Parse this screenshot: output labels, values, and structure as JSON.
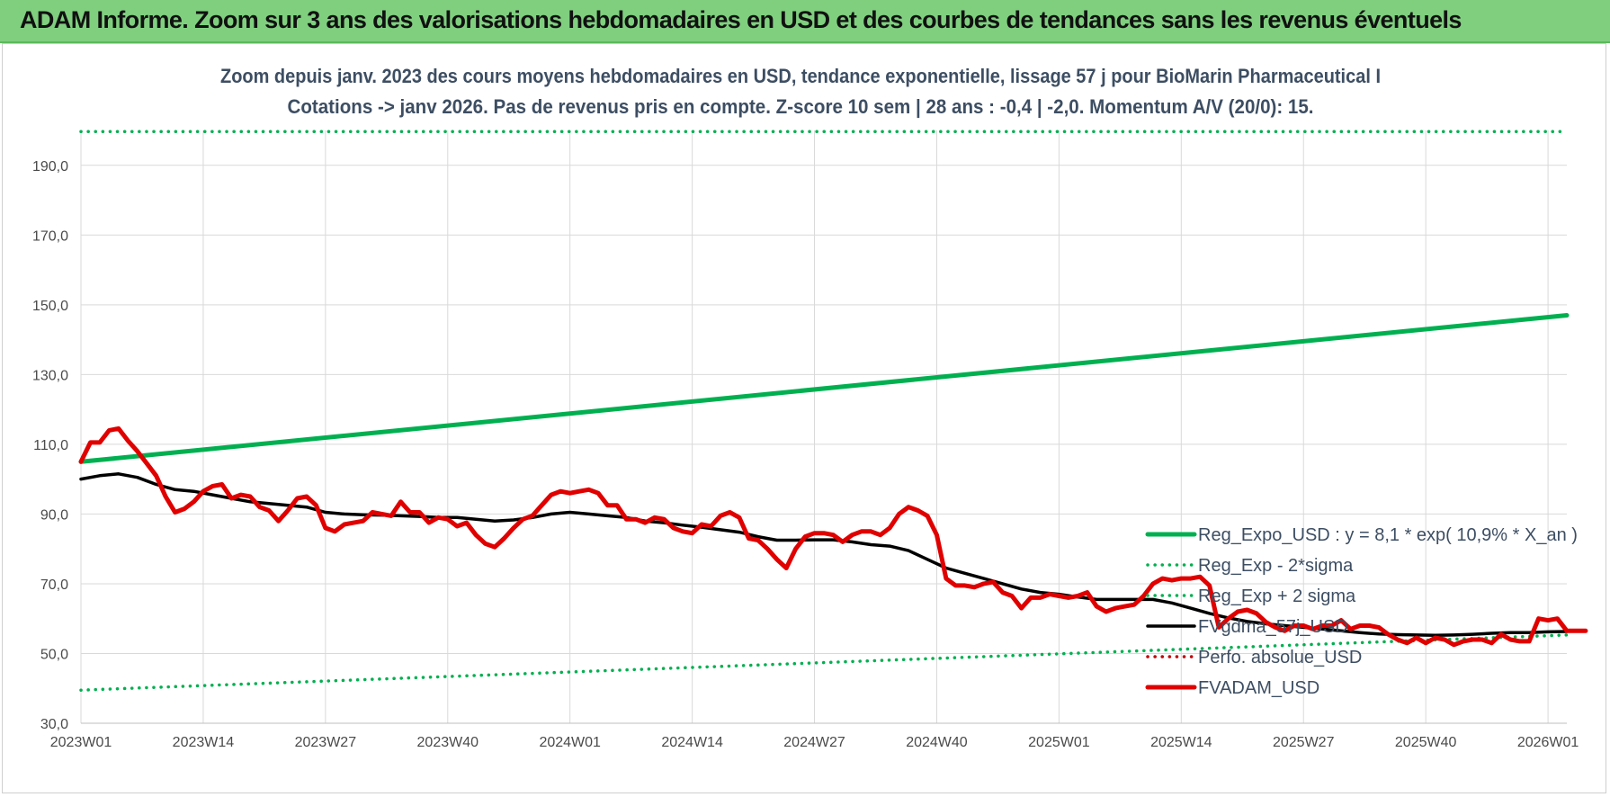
{
  "header": {
    "title": "ADAM Informe. Zoom sur 3 ans des valorisations hebdomadaires en USD et des courbes de tendances sans les revenus éventuels"
  },
  "chart_data": {
    "type": "line",
    "title_lines": [
      "Zoom depuis janv. 2023 des cours moyens hebdomadaires en USD, tendance exponentielle, lissage 57 j pour BioMarin Pharmaceutical I",
      "Cotations -> janv 2026. Pas de revenus pris en compte. Z-score 10 sem | 28 ans : -0,4 | -2,0. Momentum A/V (20/0): 15."
    ],
    "xlabel": "",
    "ylabel": "",
    "ylim": [
      30,
      200
    ],
    "y_ticks": [
      "30,0",
      "50,0",
      "70,0",
      "90,0",
      "110,0",
      "130,0",
      "150,0",
      "170,0",
      "190,0"
    ],
    "x_range_weeks": [
      0,
      158
    ],
    "x_ticks": [
      {
        "week": 0,
        "label": "2023W01"
      },
      {
        "week": 13,
        "label": "2023W14"
      },
      {
        "week": 26,
        "label": "2023W27"
      },
      {
        "week": 39,
        "label": "2023W40"
      },
      {
        "week": 52,
        "label": "2024W01"
      },
      {
        "week": 65,
        "label": "2024W14"
      },
      {
        "week": 78,
        "label": "2024W27"
      },
      {
        "week": 91,
        "label": "2024W40"
      },
      {
        "week": 104,
        "label": "2025W01"
      },
      {
        "week": 117,
        "label": "2025W14"
      },
      {
        "week": 130,
        "label": "2025W27"
      },
      {
        "week": 143,
        "label": "2025W40"
      },
      {
        "week": 156,
        "label": "2026W01"
      }
    ],
    "grid": true,
    "legend_position": "bottom-right",
    "series": [
      {
        "name": "Reg_Expo_USD : y = 8,1 * exp( 10,9% *  X_an )",
        "style": "solid-thick",
        "color": "#00b050",
        "points": [
          [
            0,
            105
          ],
          [
            158,
            147
          ]
        ]
      },
      {
        "name": "Reg_Exp - 2*sigma",
        "style": "dotted",
        "color": "#00b050",
        "points": [
          [
            0,
            39.5
          ],
          [
            158,
            55.3
          ]
        ]
      },
      {
        "name": "Reg_Exp + 2 sigma",
        "style": "dotted",
        "color": "#00b050",
        "points": [
          [
            0,
            199.7
          ],
          [
            158,
            199.7
          ]
        ]
      },
      {
        "name": "FVgdma_57j_USD",
        "style": "solid",
        "color": "#000000",
        "points": [
          [
            0,
            100
          ],
          [
            2,
            101
          ],
          [
            4,
            101.5
          ],
          [
            6,
            100.5
          ],
          [
            8,
            98.5
          ],
          [
            10,
            97
          ],
          [
            12,
            96.5
          ],
          [
            14,
            95.5
          ],
          [
            16,
            94.5
          ],
          [
            18,
            93.5
          ],
          [
            20,
            93
          ],
          [
            22,
            92.5
          ],
          [
            24,
            92
          ],
          [
            26,
            90.5
          ],
          [
            28,
            90
          ],
          [
            30,
            89.8
          ],
          [
            32,
            89.7
          ],
          [
            34,
            89.5
          ],
          [
            36,
            89.3
          ],
          [
            38,
            89
          ],
          [
            40,
            89
          ],
          [
            42,
            88.5
          ],
          [
            44,
            88
          ],
          [
            46,
            88.3
          ],
          [
            48,
            89
          ],
          [
            50,
            90
          ],
          [
            52,
            90.5
          ],
          [
            54,
            90
          ],
          [
            56,
            89.5
          ],
          [
            58,
            89
          ],
          [
            60,
            88
          ],
          [
            62,
            87.5
          ],
          [
            64,
            86.8
          ],
          [
            66,
            86.2
          ],
          [
            68,
            85.5
          ],
          [
            70,
            84.8
          ],
          [
            72,
            83.5
          ],
          [
            74,
            82.5
          ],
          [
            76,
            82.5
          ],
          [
            78,
            82.6
          ],
          [
            80,
            82.6
          ],
          [
            82,
            82
          ],
          [
            84,
            81.2
          ],
          [
            86,
            80.8
          ],
          [
            88,
            79.5
          ],
          [
            90,
            77
          ],
          [
            92,
            74.5
          ],
          [
            94,
            73
          ],
          [
            96,
            71.5
          ],
          [
            98,
            70
          ],
          [
            100,
            68.5
          ],
          [
            102,
            67.5
          ],
          [
            104,
            67
          ],
          [
            106,
            66.2
          ],
          [
            108,
            65.5
          ],
          [
            110,
            65.5
          ],
          [
            112,
            65.5
          ],
          [
            114,
            65.5
          ],
          [
            116,
            64.5
          ],
          [
            118,
            63
          ],
          [
            120,
            61.5
          ],
          [
            122,
            60.2
          ],
          [
            124,
            59.2
          ],
          [
            126,
            58.5
          ],
          [
            128,
            58
          ],
          [
            130,
            57.5
          ],
          [
            132,
            57
          ],
          [
            134,
            56.5
          ],
          [
            136,
            56
          ],
          [
            138,
            55.6
          ],
          [
            140,
            55.4
          ],
          [
            142,
            55.3
          ],
          [
            144,
            55.2
          ],
          [
            146,
            55.3
          ],
          [
            148,
            55.5
          ],
          [
            150,
            55.8
          ],
          [
            152,
            56
          ],
          [
            154,
            56
          ],
          [
            156,
            56.2
          ],
          [
            158,
            56.3
          ]
        ]
      },
      {
        "name": "Perfo. absolue_USD",
        "style": "dotted",
        "color": "#c00000",
        "points": []
      },
      {
        "name": "FVADAM_USD",
        "style": "solid-thick",
        "color": "#e00000",
        "points": [
          [
            0,
            105
          ],
          [
            1,
            110.5
          ],
          [
            2,
            110.5
          ],
          [
            3,
            114
          ],
          [
            4,
            114.5
          ],
          [
            5,
            111
          ],
          [
            6,
            108
          ],
          [
            7,
            104.5
          ],
          [
            8,
            101
          ],
          [
            9,
            95
          ],
          [
            10,
            90.5
          ],
          [
            11,
            91.5
          ],
          [
            12,
            93.5
          ],
          [
            13,
            96.5
          ],
          [
            14,
            98
          ],
          [
            15,
            98.5
          ],
          [
            16,
            94.5
          ],
          [
            17,
            95.5
          ],
          [
            18,
            95
          ],
          [
            19,
            92
          ],
          [
            20,
            91
          ],
          [
            21,
            88
          ],
          [
            22,
            91
          ],
          [
            23,
            94.5
          ],
          [
            24,
            95
          ],
          [
            25,
            92.5
          ],
          [
            26,
            86
          ],
          [
            27,
            85
          ],
          [
            28,
            87
          ],
          [
            29,
            87.5
          ],
          [
            30,
            88
          ],
          [
            31,
            90.5
          ],
          [
            32,
            90
          ],
          [
            33,
            89.5
          ],
          [
            34,
            93.5
          ],
          [
            35,
            90.5
          ],
          [
            36,
            90.5
          ],
          [
            37,
            87.5
          ],
          [
            38,
            89
          ],
          [
            39,
            88.5
          ],
          [
            40,
            86.5
          ],
          [
            41,
            87.5
          ],
          [
            42,
            84
          ],
          [
            43,
            81.5
          ],
          [
            44,
            80.5
          ],
          [
            45,
            83
          ],
          [
            46,
            86
          ],
          [
            47,
            88.5
          ],
          [
            48,
            89.5
          ],
          [
            49,
            92.5
          ],
          [
            50,
            95.5
          ],
          [
            51,
            96.5
          ],
          [
            52,
            96
          ],
          [
            53,
            96.5
          ],
          [
            54,
            97
          ],
          [
            55,
            96
          ],
          [
            56,
            92.5
          ],
          [
            57,
            92.5
          ],
          [
            58,
            88.5
          ],
          [
            59,
            88.5
          ],
          [
            60,
            87.5
          ],
          [
            61,
            89
          ],
          [
            62,
            88.5
          ],
          [
            63,
            86
          ],
          [
            64,
            85
          ],
          [
            65,
            84.5
          ],
          [
            66,
            87
          ],
          [
            67,
            86.5
          ],
          [
            68,
            89.5
          ],
          [
            69,
            90.5
          ],
          [
            70,
            89
          ],
          [
            71,
            83
          ],
          [
            72,
            82.5
          ],
          [
            73,
            80
          ],
          [
            74,
            77
          ],
          [
            75,
            74.5
          ],
          [
            76,
            80
          ],
          [
            77,
            83.5
          ],
          [
            78,
            84.5
          ],
          [
            79,
            84.5
          ],
          [
            80,
            84
          ],
          [
            81,
            82
          ],
          [
            82,
            84
          ],
          [
            83,
            85
          ],
          [
            84,
            85
          ],
          [
            85,
            84
          ],
          [
            86,
            86
          ],
          [
            87,
            90
          ],
          [
            88,
            92
          ],
          [
            89,
            91
          ],
          [
            90,
            89.5
          ],
          [
            91,
            84
          ],
          [
            92,
            71.5
          ],
          [
            93,
            69.5
          ],
          [
            94,
            69.5
          ],
          [
            95,
            69
          ],
          [
            96,
            70
          ],
          [
            97,
            70.5
          ],
          [
            98,
            67.5
          ],
          [
            99,
            66.5
          ],
          [
            100,
            63
          ],
          [
            101,
            66
          ],
          [
            102,
            66
          ],
          [
            103,
            67
          ],
          [
            104,
            66.5
          ],
          [
            105,
            66
          ],
          [
            106,
            66.5
          ],
          [
            107,
            67.5
          ],
          [
            108,
            63.5
          ],
          [
            109,
            62
          ],
          [
            110,
            63
          ],
          [
            111,
            63.5
          ],
          [
            112,
            64
          ],
          [
            113,
            66.5
          ],
          [
            114,
            70
          ],
          [
            115,
            71.5
          ],
          [
            116,
            71
          ],
          [
            117,
            71.5
          ],
          [
            118,
            71.5
          ],
          [
            119,
            72
          ],
          [
            120,
            69.5
          ],
          [
            121,
            57.5
          ],
          [
            122,
            60
          ],
          [
            123,
            62
          ],
          [
            124,
            62.5
          ],
          [
            125,
            61.5
          ],
          [
            126,
            59
          ],
          [
            127,
            57.5
          ],
          [
            128,
            56.5
          ],
          [
            129,
            58
          ],
          [
            130,
            58
          ],
          [
            131,
            57
          ],
          [
            132,
            58
          ],
          [
            133,
            58
          ],
          [
            134,
            59.5
          ],
          [
            135,
            57
          ],
          [
            136,
            58
          ],
          [
            137,
            58
          ],
          [
            138,
            57.5
          ],
          [
            139,
            55.5
          ],
          [
            140,
            54
          ],
          [
            141,
            53
          ],
          [
            142,
            54.5
          ],
          [
            143,
            53
          ],
          [
            144,
            54.5
          ],
          [
            145,
            54
          ],
          [
            146,
            52.5
          ],
          [
            147,
            53.5
          ],
          [
            148,
            54
          ],
          [
            149,
            54
          ],
          [
            150,
            53
          ],
          [
            151,
            55.5
          ],
          [
            152,
            54
          ],
          [
            153,
            53.5
          ],
          [
            154,
            53.5
          ],
          [
            155,
            60
          ],
          [
            156,
            59.5
          ],
          [
            157,
            60
          ],
          [
            158,
            56.5
          ],
          [
            159,
            56.5
          ],
          [
            160,
            56.5
          ]
        ]
      }
    ]
  }
}
